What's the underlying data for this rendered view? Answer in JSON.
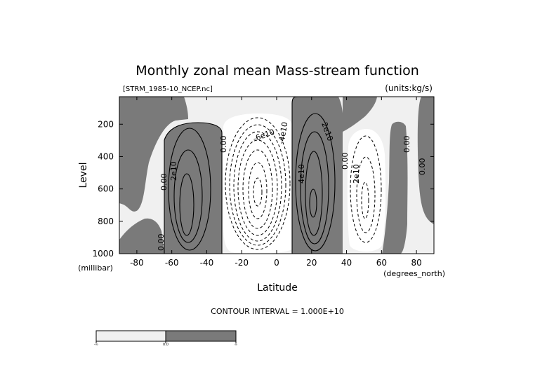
{
  "chart_data": {
    "type": "contour",
    "title": "Monthly zonal mean Mass-stream function",
    "file_label": "[STRM_1985-10_NCEP.nc]",
    "units_label": "(units:kg/s)",
    "xlabel": "Latitude",
    "x_unit_label": "(degrees_north)",
    "ylabel": "Level",
    "y_unit_label": "(millibar)",
    "xlim": [
      -90,
      90
    ],
    "ylim": [
      1000,
      30
    ],
    "x_ticks": [
      -80,
      -60,
      -40,
      -20,
      0,
      20,
      40,
      60,
      80
    ],
    "y_ticks": [
      1000,
      800,
      600,
      400,
      200
    ],
    "contour_interval_text": "CONTOUR INTERVAL = 1.000E+10",
    "contour_interval": 10000000000,
    "fill_colors": {
      "negative": "#f0f0f0",
      "positive": "#7a7a7a"
    },
    "cells": [
      {
        "sign": "positive",
        "lat_center": -52,
        "lev_center": 650,
        "peak": 40000000000
      },
      {
        "sign": "negative",
        "lat_center": -7,
        "lev_center": 600,
        "peak": -80000000000
      },
      {
        "sign": "positive",
        "lat_center": 22,
        "lev_center": 600,
        "peak": 50000000000
      },
      {
        "sign": "negative",
        "lat_center": 49,
        "lev_center": 650,
        "peak": -30000000000
      }
    ],
    "contour_labels": [
      "0.00",
      "2e10",
      "0.00",
      "0.00",
      "-6e10",
      "-4e10",
      "4e10",
      "2e10",
      "0.00",
      "2e10",
      "0.00",
      "0.00"
    ],
    "colorbar": {
      "tick_labels": [
        "-∞",
        "0.0",
        "∞"
      ]
    }
  }
}
